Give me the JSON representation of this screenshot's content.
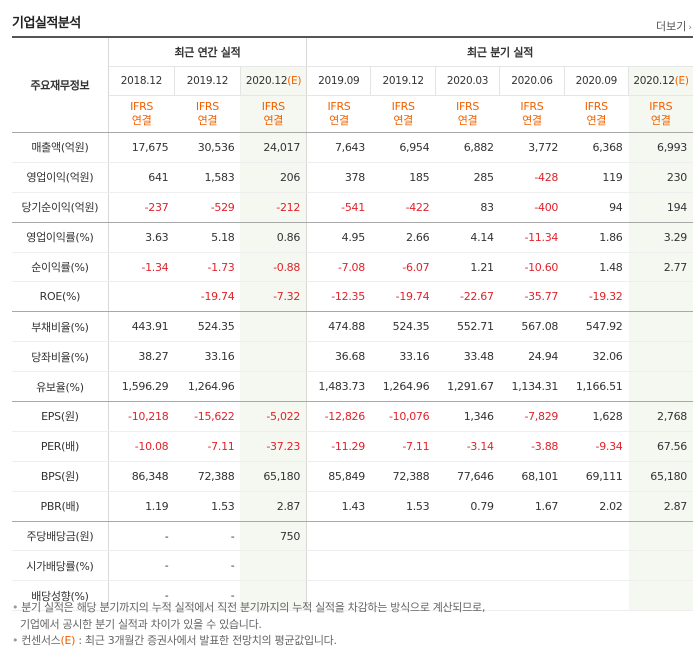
{
  "header": {
    "title": "기업실적분석",
    "more_label": "더보기"
  },
  "table": {
    "row_header_label": "주요재무정보",
    "annual_group_label": "최근 연간 실적",
    "quarter_group_label": "최근 분기 실적",
    "columns": [
      {
        "date": "2018.12",
        "est": ""
      },
      {
        "date": "2019.12",
        "est": ""
      },
      {
        "date": "2020.12",
        "est": "(E)"
      },
      {
        "date": "2019.09",
        "est": ""
      },
      {
        "date": "2019.12",
        "est": ""
      },
      {
        "date": "2020.03",
        "est": ""
      },
      {
        "date": "2020.06",
        "est": ""
      },
      {
        "date": "2020.09",
        "est": ""
      },
      {
        "date": "2020.12",
        "est": "(E)"
      }
    ],
    "ifrs_label": "IFRS",
    "consol_label": "연결",
    "rows": [
      {
        "label": "매출액(억원)",
        "values": [
          "17,675",
          "30,536",
          "24,017",
          "7,643",
          "6,954",
          "6,882",
          "3,772",
          "6,368",
          "6,993"
        ]
      },
      {
        "label": "영업이익(억원)",
        "values": [
          "641",
          "1,583",
          "206",
          "378",
          "185",
          "285",
          "-428",
          "119",
          "230"
        ]
      },
      {
        "label": "당기순이익(억원)",
        "values": [
          "-237",
          "-529",
          "-212",
          "-541",
          "-422",
          "83",
          "-400",
          "94",
          "194"
        ]
      },
      {
        "label": "영업이익률(%)",
        "values": [
          "3.63",
          "5.18",
          "0.86",
          "4.95",
          "2.66",
          "4.14",
          "-11.34",
          "1.86",
          "3.29"
        ]
      },
      {
        "label": "순이익률(%)",
        "values": [
          "-1.34",
          "-1.73",
          "-0.88",
          "-7.08",
          "-6.07",
          "1.21",
          "-10.60",
          "1.48",
          "2.77"
        ]
      },
      {
        "label": "ROE(%)",
        "values": [
          "",
          "-19.74",
          "-7.32",
          "-12.35",
          "-19.74",
          "-22.67",
          "-35.77",
          "-19.32",
          ""
        ]
      },
      {
        "label": "부채비율(%)",
        "values": [
          "443.91",
          "524.35",
          "",
          "474.88",
          "524.35",
          "552.71",
          "567.08",
          "547.92",
          ""
        ]
      },
      {
        "label": "당좌비율(%)",
        "values": [
          "38.27",
          "33.16",
          "",
          "36.68",
          "33.16",
          "33.48",
          "24.94",
          "32.06",
          ""
        ]
      },
      {
        "label": "유보율(%)",
        "values": [
          "1,596.29",
          "1,264.96",
          "",
          "1,483.73",
          "1,264.96",
          "1,291.67",
          "1,134.31",
          "1,166.51",
          ""
        ]
      },
      {
        "label": "EPS(원)",
        "values": [
          "-10,218",
          "-15,622",
          "-5,022",
          "-12,826",
          "-10,076",
          "1,346",
          "-7,829",
          "1,628",
          "2,768"
        ]
      },
      {
        "label": "PER(배)",
        "values": [
          "-10.08",
          "-7.11",
          "-37.23",
          "-11.29",
          "-7.11",
          "-3.14",
          "-3.88",
          "-9.34",
          "67.56"
        ]
      },
      {
        "label": "BPS(원)",
        "values": [
          "86,348",
          "72,388",
          "65,180",
          "85,849",
          "72,388",
          "77,646",
          "68,101",
          "69,111",
          "65,180"
        ]
      },
      {
        "label": "PBR(배)",
        "values": [
          "1.19",
          "1.53",
          "2.87",
          "1.43",
          "1.53",
          "0.79",
          "1.67",
          "2.02",
          "2.87"
        ]
      },
      {
        "label": "주당배당금(원)",
        "values": [
          "-",
          "-",
          "750",
          "",
          "",
          "",
          "",
          "",
          ""
        ]
      },
      {
        "label": "시가배당률(%)",
        "values": [
          "-",
          "-",
          "",
          "",
          "",
          "",
          "",
          "",
          ""
        ]
      },
      {
        "label": "배당성향(%)",
        "values": [
          "-",
          "-",
          "",
          "",
          "",
          "",
          "",
          "",
          ""
        ]
      }
    ]
  },
  "notes": {
    "line1": "분기 실적은 해당 분기까지의 누적 실적에서 직전 분기까지의 누적 실적을 차감하는 방식으로 계산되므로,",
    "line2": "기업에서 공시한 분기 실적과 차이가 있을 수 있습니다.",
    "line3_a": "컨센서스",
    "line3_e": "(E)",
    "line3_b": " : 최근 3개월간 증권사에서 발표한 전망치의 평균값입니다."
  },
  "colors": {
    "negative": "#e0232b",
    "estimate": "#f06000",
    "estimate_bg": "#f4f8f1"
  }
}
